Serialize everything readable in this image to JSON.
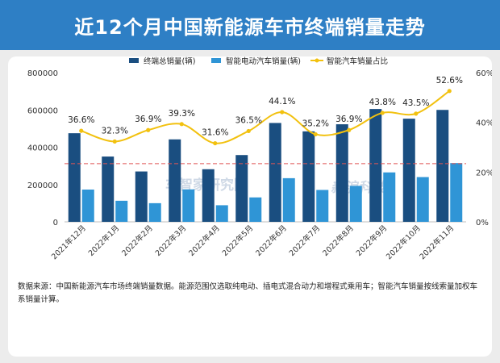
{
  "header": {
    "title": "近12个月中国新能源车市终端销量走势"
  },
  "colors": {
    "header_bg": "#2e7fc5",
    "bar_total": "#1a4e80",
    "bar_smart": "#2f95d6",
    "line": "#f2c10f",
    "threshold": "#e05555",
    "axis": "#bfbfbf"
  },
  "chart_data": {
    "type": "bar+line",
    "categories": [
      "2021年12月",
      "2022年1月",
      "2022年2月",
      "2022年3月",
      "2022年4月",
      "2022年5月",
      "2022年6月",
      "2022年7月",
      "2022年8月",
      "2022年9月",
      "2022年10月",
      "2022年11月"
    ],
    "series": [
      {
        "name": "终端总销量(辆)",
        "type": "bar",
        "axis": "left",
        "values": [
          475000,
          350000,
          270000,
          442000,
          282000,
          358000,
          530000,
          485000,
          523000,
          605000,
          553000,
          600000
        ]
      },
      {
        "name": "智能电动汽车销量(辆)",
        "type": "bar",
        "axis": "left",
        "values": [
          173000,
          113000,
          100000,
          174000,
          89000,
          131000,
          234000,
          171000,
          193000,
          265000,
          240000,
          315000
        ]
      },
      {
        "name": "智能汽车销量占比",
        "type": "line",
        "axis": "right",
        "values": [
          36.6,
          32.3,
          36.9,
          39.3,
          31.6,
          36.5,
          44.1,
          35.2,
          36.9,
          43.8,
          43.5,
          52.6
        ],
        "labels": [
          "36.6%",
          "32.3%",
          "36.9%",
          "39.3%",
          "31.6%",
          "36.5%",
          "44.1%",
          "35.2%",
          "36.9%",
          "43.8%",
          "43.5%",
          "52.6%"
        ]
      }
    ],
    "y_left": {
      "ylim": [
        0,
        800000
      ],
      "ticks": [
        0,
        200000,
        400000,
        600000,
        800000
      ],
      "tick_labels": [
        "0",
        "200000",
        "400000",
        "600000",
        "800000"
      ]
    },
    "y_right": {
      "ylim": [
        0,
        60
      ],
      "ticks": [
        0,
        20,
        40,
        60
      ],
      "tick_labels": [
        "0%",
        "20%",
        "40%",
        "60%"
      ]
    },
    "reference_line": {
      "value": 312000,
      "axis": "left",
      "style": "dashed"
    },
    "grid": false,
    "legend_position": "top"
  },
  "watermarks": [
    "车智家研究院",
    "新浪科技"
  ],
  "footnote": "数据来源：中国新能源汽车市场终端销量数据。能源范围仅选取纯电动、插电式混合动力和增程式乘用车；智能汽车销量按线索量加权车系销量计算。"
}
